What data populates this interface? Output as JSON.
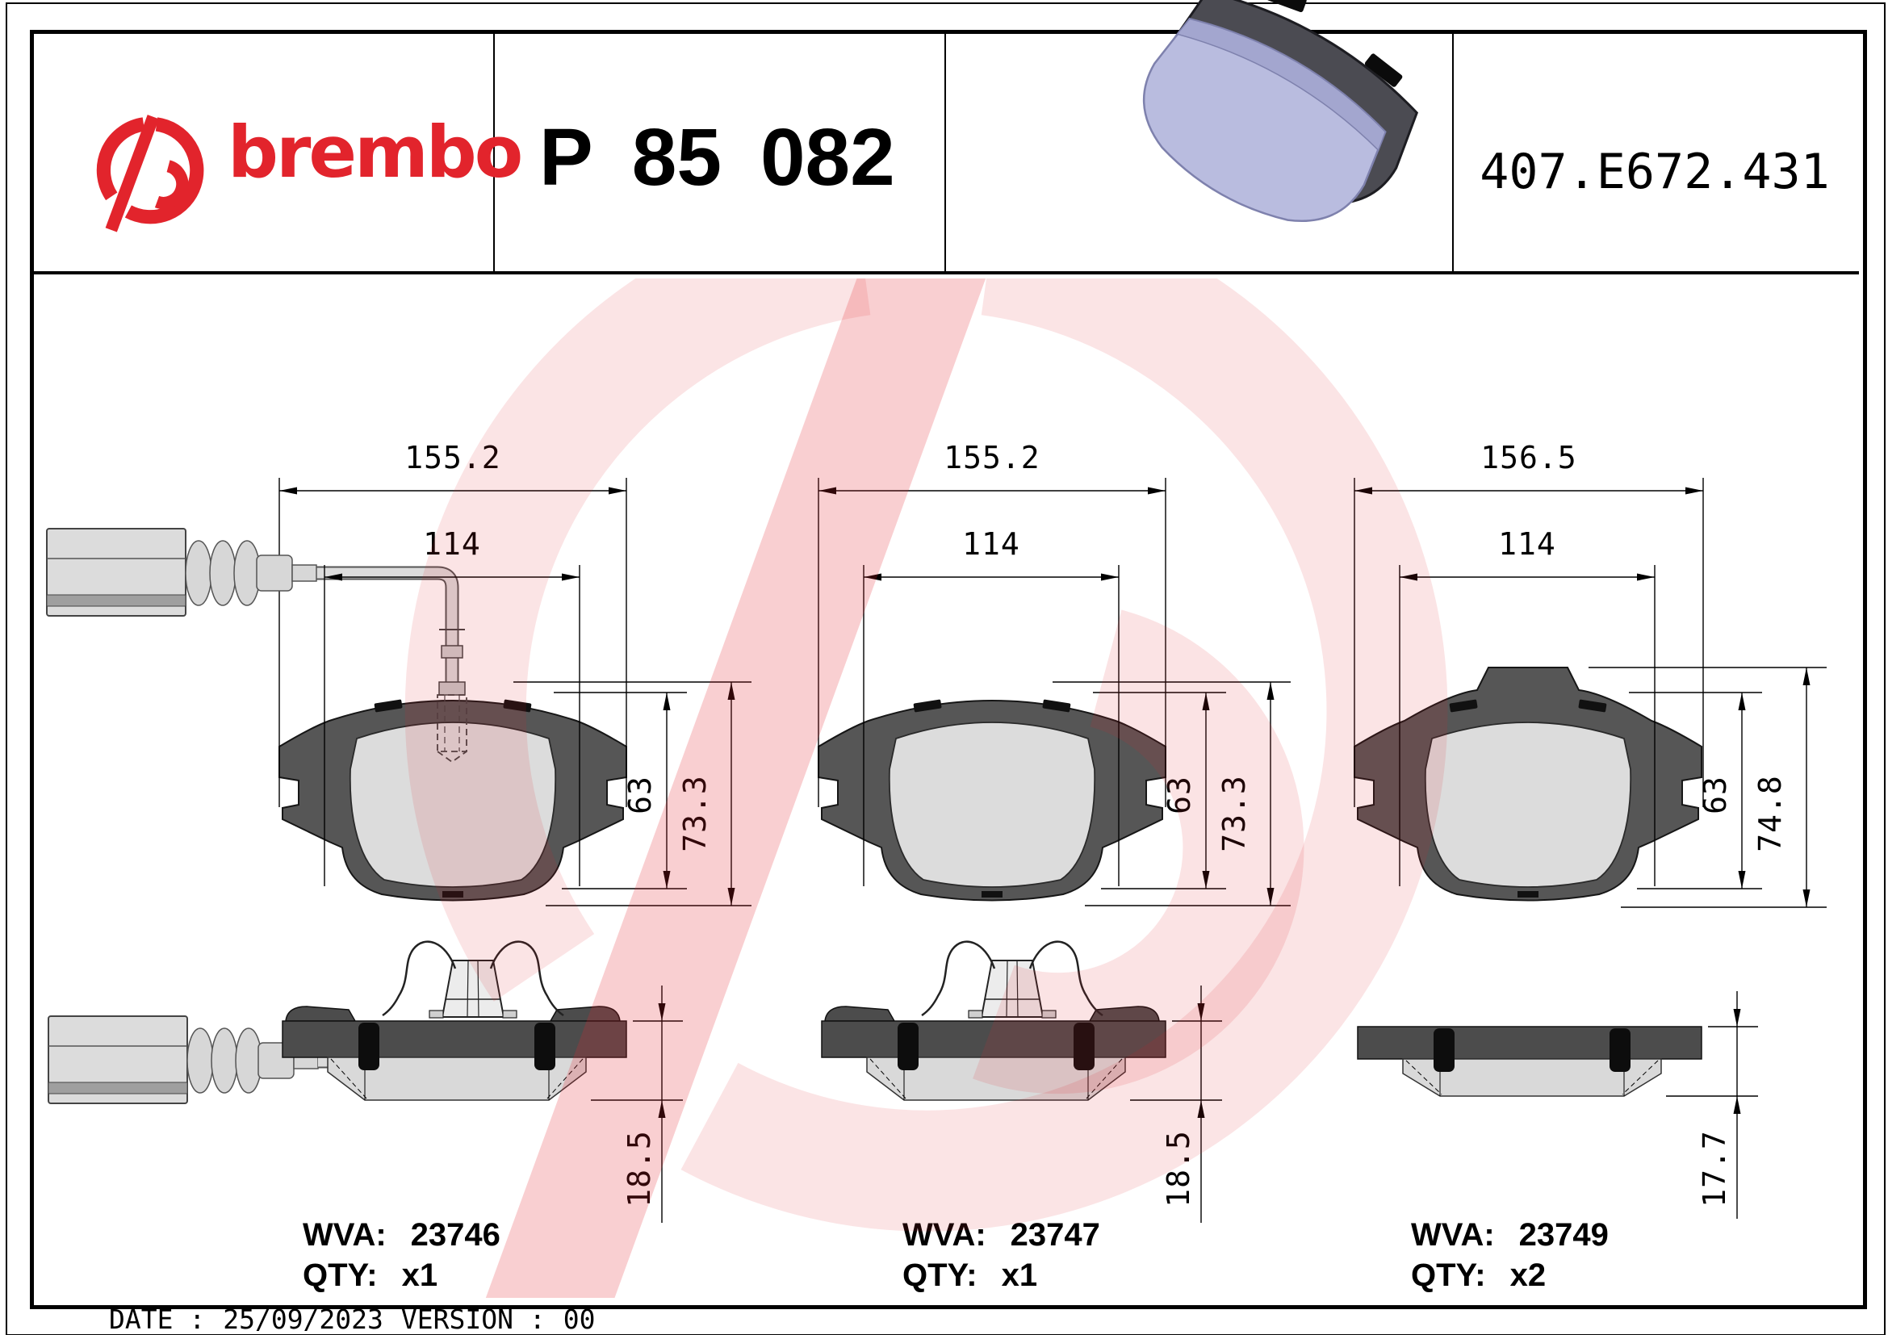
{
  "page": {
    "background": "#ffffff",
    "line_color": "#000000",
    "brand_red": "#e2242c",
    "watermark_ring_color": "rgba(226,36,44,0.12)",
    "watermark_slash_color": "rgba(226,36,44,0.22)",
    "backplate_gray": "#565656",
    "friction_gray": "#dcdcdc",
    "pad3d_friction": "#b9bcdf",
    "pad3d_plate": "#4b4b52"
  },
  "header": {
    "brand_wordmark": "brembo",
    "part_number_parts": [
      "P",
      "85",
      "082"
    ],
    "catalog_code": "407.E672.431"
  },
  "drawings": [
    {
      "position": "left",
      "total_width_mm": "155.2",
      "pad_width_mm": "114",
      "pad_height_mm": "63",
      "total_height_mm": "73.3",
      "thickness_mm": "18.5",
      "wva_label": "WVA:",
      "wva_number": "23746",
      "qty_label": "QTY:",
      "qty_value": "x1",
      "features": {
        "wear_sensor": true,
        "spring_clip": true,
        "top_bump": false
      }
    },
    {
      "position": "middle",
      "total_width_mm": "155.2",
      "pad_width_mm": "114",
      "pad_height_mm": "63",
      "total_height_mm": "73.3",
      "thickness_mm": "18.5",
      "wva_label": "WVA:",
      "wva_number": "23747",
      "qty_label": "QTY:",
      "qty_value": "x1",
      "features": {
        "wear_sensor": false,
        "spring_clip": true,
        "top_bump": false
      }
    },
    {
      "position": "right",
      "total_width_mm": "156.5",
      "pad_width_mm": "114",
      "pad_height_mm": "63",
      "total_height_mm": "74.8",
      "thickness_mm": "17.7",
      "wva_label": "WVA:",
      "wva_number": "23749",
      "qty_label": "QTY:",
      "qty_value": "x2",
      "features": {
        "wear_sensor": false,
        "spring_clip": false,
        "top_bump": true
      }
    }
  ],
  "footer": {
    "date_label": "DATE :",
    "date_value": "25/09/2023",
    "version_label": "VERSION :",
    "version_value": "00"
  },
  "icons": {
    "logo": "brembo-mark",
    "pad_3d": "brake-pad-3d-render",
    "watermark": "brembo-mark-watermark"
  }
}
